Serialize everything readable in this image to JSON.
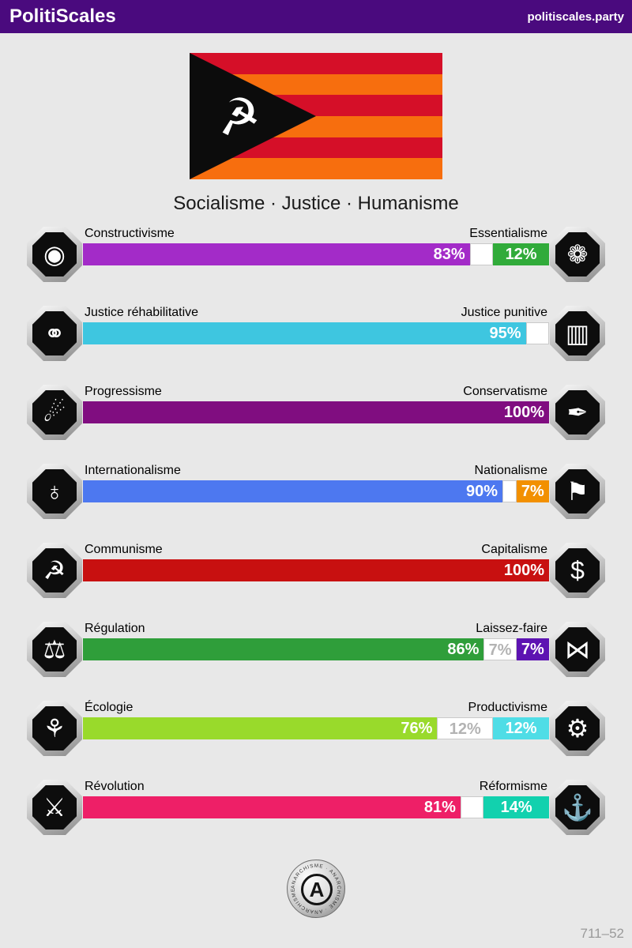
{
  "header": {
    "title": "PolitiScales",
    "site": "politiscales.party"
  },
  "flag": {
    "red": "#d50f28",
    "orange": "#f76e0e",
    "emblem_glyph": "☭",
    "emblem_name": "hammer-and-sickle"
  },
  "subtitle": "Socialisme · Justice · Humanisme",
  "axes": [
    {
      "left_label": "Constructivisme",
      "right_label": "Essentialisme",
      "left_pct": 83,
      "neutral_pct": 5,
      "right_pct": 12,
      "left_value": "83%",
      "neutral_value": "",
      "right_value": "12%",
      "left_color": "#a32bc8",
      "right_color": "#31ab3a",
      "left_icon": "eye-construct-icon",
      "right_icon": "chrysanthemum-icon",
      "left_glyph": "◉",
      "right_glyph": "❁"
    },
    {
      "left_label": "Justice réhabilitative",
      "right_label": "Justice punitive",
      "left_pct": 95,
      "neutral_pct": 5,
      "right_pct": 0,
      "left_value": "95%",
      "neutral_value": "",
      "right_value": "",
      "left_color": "#3ec6e0",
      "right_color": "",
      "left_icon": "handshake-icon",
      "right_icon": "prison-bars-icon",
      "left_glyph": "⚭",
      "right_glyph": "▥"
    },
    {
      "left_label": "Progressisme",
      "right_label": "Conservatisme",
      "left_pct": 100,
      "neutral_pct": 0,
      "right_pct": 0,
      "left_value": "100%",
      "neutral_value": "",
      "right_value": "",
      "left_color": "#800d80",
      "right_color": "",
      "left_icon": "sower-icon",
      "right_icon": "pen-nib-icon",
      "left_glyph": "☄",
      "right_glyph": "✒"
    },
    {
      "left_label": "Internationalisme",
      "right_label": "Nationalisme",
      "left_pct": 90,
      "neutral_pct": 3,
      "right_pct": 7,
      "left_value": "90%",
      "neutral_value": "",
      "right_value": "7%",
      "left_color": "#4d78f0",
      "right_color": "#f29000",
      "left_icon": "globe-laurel-icon",
      "right_icon": "flag-icon",
      "left_glyph": "♁",
      "right_glyph": "⚑"
    },
    {
      "left_label": "Communisme",
      "right_label": "Capitalisme",
      "left_pct": 100,
      "neutral_pct": 0,
      "right_pct": 0,
      "left_value": "100%",
      "neutral_value": "",
      "right_value": "",
      "left_color": "#c81010",
      "right_color": "",
      "left_icon": "hammer-sickle-icon",
      "right_icon": "money-bag-icon",
      "left_glyph": "☭",
      "right_glyph": "$"
    },
    {
      "left_label": "Régulation",
      "right_label": "Laissez-faire",
      "left_pct": 86,
      "neutral_pct": 7,
      "right_pct": 7,
      "left_value": "86%",
      "neutral_value": "7%",
      "right_value": "7%",
      "left_color": "#2f9e3a",
      "right_color": "#5d13b2",
      "left_icon": "ruler-shapes-icon",
      "right_icon": "butterfly-icon",
      "left_glyph": "⚖",
      "right_glyph": "⋈"
    },
    {
      "left_label": "Écologie",
      "right_label": "Productivisme",
      "left_pct": 76,
      "neutral_pct": 12,
      "right_pct": 12,
      "left_value": "76%",
      "neutral_value": "12%",
      "right_value": "12%",
      "left_color": "#99da2b",
      "right_color": "#4fdde6",
      "left_icon": "seedling-sun-icon",
      "right_icon": "gears-icon",
      "left_glyph": "⚘",
      "right_glyph": "⚙"
    },
    {
      "left_label": "Révolution",
      "right_label": "Réformisme",
      "left_pct": 81,
      "neutral_pct": 5,
      "right_pct": 14,
      "left_value": "81%",
      "neutral_value": "",
      "right_value": "14%",
      "left_color": "#ee1f67",
      "right_color": "#12d1ae",
      "left_icon": "raised-fist-icon",
      "right_icon": "sailboat-icon",
      "left_glyph": "⚔",
      "right_glyph": "⚓"
    }
  ],
  "badge": {
    "text": "ANARCHISME · ANARCHISME · ANARCHISME ·",
    "symbol": "A"
  },
  "footer": {
    "code": "711–52"
  }
}
